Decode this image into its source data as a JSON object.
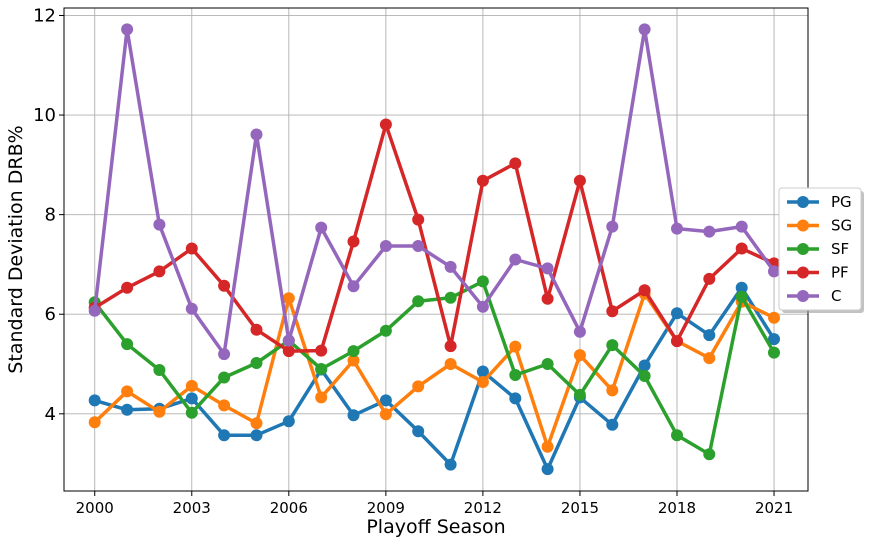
{
  "chart_data": {
    "type": "line",
    "xlabel": "Playoff Season",
    "ylabel": "Standard Deviation DRB%",
    "x": [
      2000,
      2001,
      2002,
      2003,
      2004,
      2005,
      2006,
      2007,
      2008,
      2009,
      2010,
      2011,
      2012,
      2013,
      2014,
      2015,
      2016,
      2017,
      2018,
      2019,
      2020,
      2021
    ],
    "xticks": [
      2000,
      2003,
      2006,
      2009,
      2012,
      2015,
      2018,
      2021
    ],
    "yticks": [
      4,
      6,
      8,
      10,
      12
    ],
    "xlim": [
      1999.05,
      2022.05
    ],
    "ylim": [
      2.45,
      12.15
    ],
    "grid": true,
    "legend_position": "center-right",
    "series": [
      {
        "name": "PG",
        "color": "#1f77b4",
        "values": [
          4.27,
          4.08,
          4.1,
          4.31,
          3.57,
          3.57,
          3.85,
          4.89,
          3.97,
          4.27,
          3.65,
          2.98,
          4.85,
          4.31,
          2.89,
          4.33,
          3.78,
          4.97,
          6.02,
          5.58,
          6.53,
          5.5
        ]
      },
      {
        "name": "SG",
        "color": "#ff7f0e",
        "values": [
          3.83,
          4.45,
          4.04,
          4.56,
          4.17,
          3.81,
          6.32,
          4.33,
          5.07,
          3.99,
          4.55,
          5.0,
          4.64,
          5.35,
          3.34,
          5.18,
          4.47,
          6.41,
          5.46,
          5.12,
          6.25,
          5.93
        ]
      },
      {
        "name": "SF",
        "color": "#2ca02c",
        "values": [
          6.24,
          5.4,
          4.88,
          4.02,
          4.73,
          5.02,
          5.47,
          4.9,
          5.26,
          5.67,
          6.26,
          6.33,
          6.66,
          4.78,
          5.0,
          4.38,
          5.38,
          4.76,
          3.57,
          3.19,
          6.35,
          5.23
        ]
      },
      {
        "name": "PF",
        "color": "#d62728",
        "values": [
          6.13,
          6.53,
          6.86,
          7.32,
          6.57,
          5.69,
          5.26,
          5.27,
          7.46,
          9.81,
          7.9,
          5.36,
          8.68,
          9.03,
          6.31,
          8.68,
          6.06,
          6.48,
          5.46,
          6.71,
          7.32,
          7.02
        ]
      },
      {
        "name": "C",
        "color": "#9467bd",
        "values": [
          6.07,
          11.72,
          7.8,
          6.11,
          5.2,
          9.61,
          5.47,
          7.74,
          6.56,
          7.37,
          7.37,
          6.95,
          6.15,
          7.1,
          6.92,
          5.65,
          7.76,
          11.72,
          7.72,
          7.66,
          7.76,
          6.86
        ]
      }
    ]
  }
}
